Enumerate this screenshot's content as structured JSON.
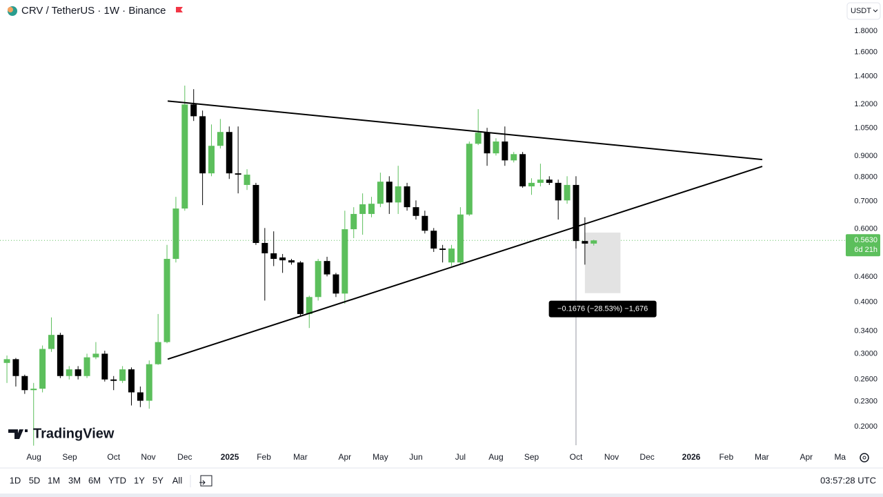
{
  "header": {
    "title": "CRV / TetherUS · 1W · Binance",
    "currency": "USDT"
  },
  "branding": "TradingView",
  "toolbar": {
    "ranges": [
      "1D",
      "5D",
      "1M",
      "3M",
      "6M",
      "YTD",
      "1Y",
      "5Y",
      "All"
    ],
    "clock": "03:57:28 UTC"
  },
  "chart_data": {
    "type": "candlestick",
    "log_scale": true,
    "grid": false,
    "up_color": "#5cbf5c",
    "down_color": "#000000",
    "open": [
      0.285,
      0.291,
      0.265,
      0.245,
      0.247,
      0.308,
      0.333,
      0.265,
      0.275,
      0.265,
      0.294,
      0.3,
      0.26,
      0.258,
      0.275,
      0.242,
      0.231,
      0.283,
      0.32,
      0.508,
      0.672,
      1.198,
      1.122,
      0.817,
      0.952,
      1.028,
      0.817,
      0.766,
      0.766,
      0.555,
      0.524,
      0.512,
      0.504,
      0.498,
      0.374,
      0.411,
      0.502,
      0.466,
      0.419,
      0.599,
      0.652,
      0.652,
      0.69,
      0.78,
      0.695,
      0.76,
      0.677,
      0.645,
      0.594,
      0.538,
      0.498,
      0.498,
      0.65,
      0.963,
      1.024,
      0.913,
      0.975,
      0.878,
      0.909,
      0.76,
      0.775,
      0.789,
      0.775,
      0.703,
      0.766,
      0.561,
      0.553
    ],
    "high": [
      0.297,
      0.293,
      0.267,
      0.255,
      0.314,
      0.367,
      0.337,
      0.28,
      0.28,
      0.3,
      0.32,
      0.305,
      0.265,
      0.28,
      0.278,
      0.25,
      0.289,
      0.374,
      0.549,
      0.717,
      1.33,
      1.304,
      1.158,
      1.072,
      1.105,
      1.06,
      1.06,
      0.836,
      0.775,
      0.603,
      0.592,
      0.522,
      0.508,
      0.502,
      0.414,
      0.508,
      0.514,
      0.47,
      0.664,
      0.677,
      0.731,
      0.717,
      0.82,
      0.804,
      0.852,
      0.775,
      0.703,
      0.664,
      0.603,
      0.549,
      0.549,
      0.677,
      0.975,
      1.167,
      1.052,
      0.993,
      1.06,
      0.92,
      0.92,
      0.795,
      0.862,
      0.804,
      0.789,
      0.804,
      0.804,
      0.64,
      0.565
    ],
    "low": [
      0.255,
      0.25,
      0.24,
      0.18,
      0.242,
      0.303,
      0.262,
      0.26,
      0.26,
      0.262,
      0.291,
      0.257,
      0.245,
      0.255,
      0.225,
      0.223,
      0.221,
      0.282,
      0.318,
      0.498,
      0.664,
      1.093,
      0.685,
      0.804,
      0.938,
      0.792,
      0.731,
      0.745,
      0.549,
      0.403,
      0.488,
      0.47,
      0.492,
      0.37,
      0.346,
      0.403,
      0.461,
      0.411,
      0.396,
      0.57,
      0.581,
      0.64,
      0.677,
      0.652,
      0.652,
      0.664,
      0.632,
      0.585,
      0.528,
      0.498,
      0.488,
      0.492,
      0.645,
      0.956,
      0.852,
      0.902,
      0.852,
      0.868,
      0.754,
      0.725,
      0.76,
      0.766,
      0.632,
      0.69,
      0.538,
      0.492,
      0.547
    ],
    "close": [
      0.291,
      0.265,
      0.245,
      0.247,
      0.308,
      0.333,
      0.265,
      0.275,
      0.265,
      0.294,
      0.3,
      0.26,
      0.258,
      0.275,
      0.242,
      0.231,
      0.283,
      0.32,
      0.508,
      0.672,
      1.198,
      1.122,
      0.817,
      0.952,
      1.028,
      0.817,
      0.811,
      0.811,
      0.555,
      0.524,
      0.508,
      0.504,
      0.498,
      0.374,
      0.411,
      0.502,
      0.466,
      0.419,
      0.599,
      0.652,
      0.688,
      0.69,
      0.78,
      0.695,
      0.76,
      0.677,
      0.645,
      0.594,
      0.538,
      0.534,
      0.538,
      0.65,
      0.963,
      1.024,
      0.913,
      0.975,
      0.878,
      0.909,
      0.76,
      0.775,
      0.789,
      0.775,
      0.703,
      0.766,
      0.561,
      0.553,
      0.563
    ],
    "xlim": [
      -0.78,
      94.26
    ],
    "ylim": [
      0.177,
      2.14
    ],
    "xticks": [
      {
        "value": 3.03,
        "label": "Aug"
      },
      {
        "value": 7.06,
        "label": "Sep"
      },
      {
        "value": 12.0,
        "label": "Oct"
      },
      {
        "value": 15.9,
        "label": "Nov"
      },
      {
        "value": 20.0,
        "label": "Dec"
      },
      {
        "value": 25.06,
        "label": "2025"
      },
      {
        "value": 28.9,
        "label": "Feb"
      },
      {
        "value": 33.0,
        "label": "Mar"
      },
      {
        "value": 38.0,
        "label": "Apr"
      },
      {
        "value": 42.0,
        "label": "May"
      },
      {
        "value": 46.0,
        "label": "Jun"
      },
      {
        "value": 51.0,
        "label": "Jul"
      },
      {
        "value": 55.0,
        "label": "Aug"
      },
      {
        "value": 59.0,
        "label": "Sep"
      },
      {
        "value": 64.0,
        "label": "Oct"
      },
      {
        "value": 68.0,
        "label": "Nov"
      },
      {
        "value": 72.0,
        "label": "Dec"
      },
      {
        "value": 76.96,
        "label": "2026"
      },
      {
        "value": 80.9,
        "label": "Feb"
      },
      {
        "value": 84.9,
        "label": "Mar"
      },
      {
        "value": 89.9,
        "label": "Apr"
      },
      {
        "value": 93.7,
        "label": "Ma"
      }
    ],
    "yticks": [
      {
        "value": 0.2,
        "label": "0.2000"
      },
      {
        "value": 0.23,
        "label": "0.2300"
      },
      {
        "value": 0.26,
        "label": "0.2600"
      },
      {
        "value": 0.3,
        "label": "0.3000"
      },
      {
        "value": 0.34,
        "label": "0.3400"
      },
      {
        "value": 0.4,
        "label": "0.4000"
      },
      {
        "value": 0.46,
        "label": "0.4600"
      },
      {
        "value": 0.6,
        "label": "0.6000"
      },
      {
        "value": 0.7,
        "label": "0.7000"
      },
      {
        "value": 0.8,
        "label": "0.8000"
      },
      {
        "value": 0.9,
        "label": "0.9000"
      },
      {
        "value": 1.05,
        "label": "1.0500"
      },
      {
        "value": 1.2,
        "label": "1.2000"
      },
      {
        "value": 1.4,
        "label": "1.4000"
      },
      {
        "value": 1.6,
        "label": "1.6000"
      },
      {
        "value": 1.8,
        "label": "1.8000"
      }
    ],
    "trendlines": [
      {
        "x": [
          18.08,
          84.95
        ],
        "y": [
          1.221,
          0.882
        ]
      },
      {
        "x": [
          18.08,
          84.95
        ],
        "y": [
          0.291,
          0.849
        ]
      }
    ],
    "measure": {
      "x": [
        65,
        69
      ],
      "y": [
        0.588,
        0.42
      ],
      "label": "−0.1676 (−28.53%) −1,676"
    },
    "crosshair_x": 64,
    "price_tag": {
      "value": 0.563,
      "label": "0.5630",
      "countdown": "6d 21h"
    }
  }
}
